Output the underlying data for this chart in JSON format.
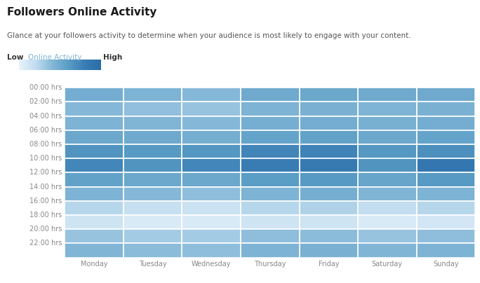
{
  "title": "Followers Online Activity",
  "subtitle": "Glance at your followers activity to determine when your audience is most likely to engage with your content.",
  "legend_low": "Low",
  "legend_mid": "Online Activity",
  "legend_high": "High",
  "days": [
    "Monday",
    "Tuesday",
    "Wednesday",
    "Thursday",
    "Friday",
    "Saturday",
    "Sunday"
  ],
  "hours": [
    "00:00 hrs",
    "02:00 hrs",
    "04:00 hrs",
    "06:00 hrs",
    "08:00 hrs",
    "10:00 hrs",
    "12:00 hrs",
    "14:00 hrs",
    "16:00 hrs",
    "18:00 hrs",
    "20:00 hrs",
    "22:00 hrs"
  ],
  "data": [
    [
      0.48,
      0.44,
      0.4,
      0.5,
      0.52,
      0.5,
      0.5
    ],
    [
      0.4,
      0.36,
      0.34,
      0.44,
      0.45,
      0.43,
      0.45
    ],
    [
      0.44,
      0.42,
      0.4,
      0.47,
      0.48,
      0.46,
      0.48
    ],
    [
      0.52,
      0.5,
      0.47,
      0.55,
      0.56,
      0.52,
      0.55
    ],
    [
      0.66,
      0.62,
      0.64,
      0.75,
      0.76,
      0.63,
      0.68
    ],
    [
      0.74,
      0.66,
      0.74,
      0.82,
      0.84,
      0.66,
      0.88
    ],
    [
      0.56,
      0.52,
      0.52,
      0.6,
      0.62,
      0.54,
      0.62
    ],
    [
      0.44,
      0.4,
      0.37,
      0.44,
      0.47,
      0.42,
      0.44
    ],
    [
      0.24,
      0.18,
      0.16,
      0.24,
      0.26,
      0.2,
      0.24
    ],
    [
      0.14,
      0.08,
      0.08,
      0.14,
      0.14,
      0.08,
      0.12
    ],
    [
      0.34,
      0.3,
      0.3,
      0.37,
      0.38,
      0.34,
      0.37
    ],
    [
      0.42,
      0.38,
      0.37,
      0.44,
      0.45,
      0.42,
      0.44
    ]
  ],
  "color_low": "#e8f3fb",
  "color_high": "#2b6ea8",
  "background_color": "#ffffff",
  "grid_color": "#ffffff",
  "title_fontsize": 11,
  "subtitle_fontsize": 7.5,
  "label_fontsize": 7,
  "legend_fontsize": 7.5,
  "tick_color": "#888888"
}
